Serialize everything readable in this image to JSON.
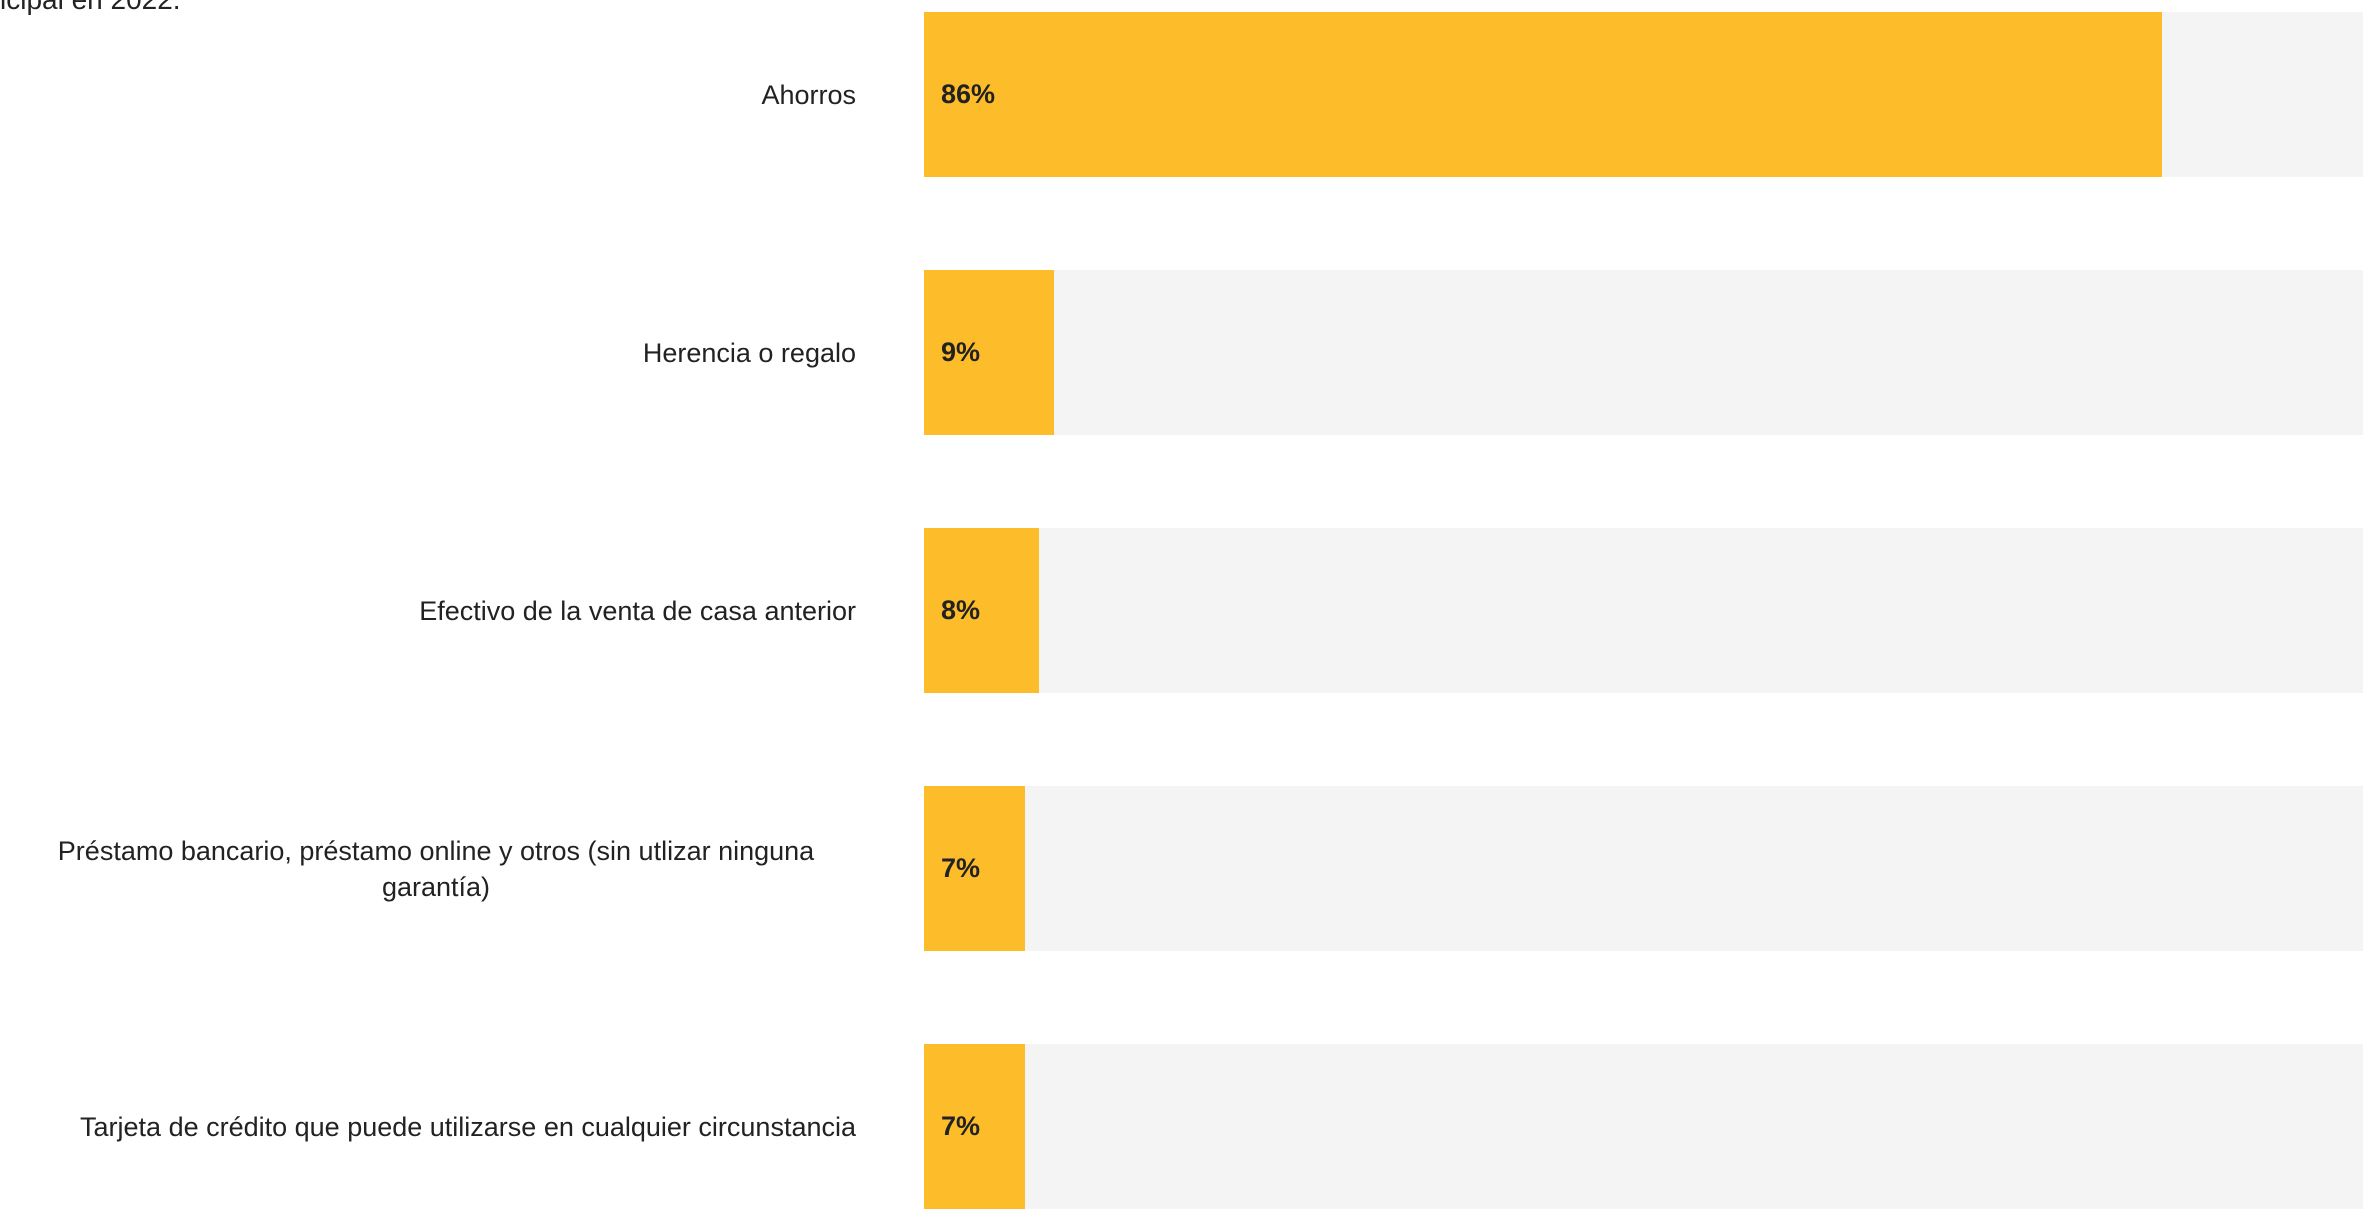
{
  "chart_data": {
    "type": "bar",
    "orientation": "horizontal",
    "title": "icipal en 2022.",
    "categories": [
      "Ahorros",
      "Herencia o regalo",
      "Efectivo de la venta de casa anterior",
      "Préstamo bancario, préstamo online y otros (sin utlizar ninguna garantía)",
      "Tarjeta de crédito que puede utilizarse en cualquier circunstancia"
    ],
    "values": [
      86,
      9,
      8,
      7,
      7
    ],
    "value_labels": [
      "86%",
      "9%",
      "8%",
      "7%",
      "7%"
    ],
    "color": "#fdbd2a",
    "track_color": "#f4f4f4",
    "xlim": [
      0,
      100
    ]
  }
}
